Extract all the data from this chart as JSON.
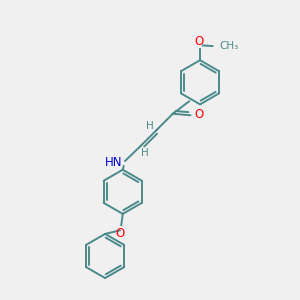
{
  "bg_color": "#f0f0f0",
  "bond_color": "#4a8a8a",
  "atom_colors": {
    "O": "#ff0000",
    "N": "#0000cc",
    "C": "#000000",
    "H": "#4a8a8a"
  },
  "figsize": [
    3.0,
    3.0
  ],
  "dpi": 100,
  "ring_r": 0.75,
  "lw": 1.4
}
